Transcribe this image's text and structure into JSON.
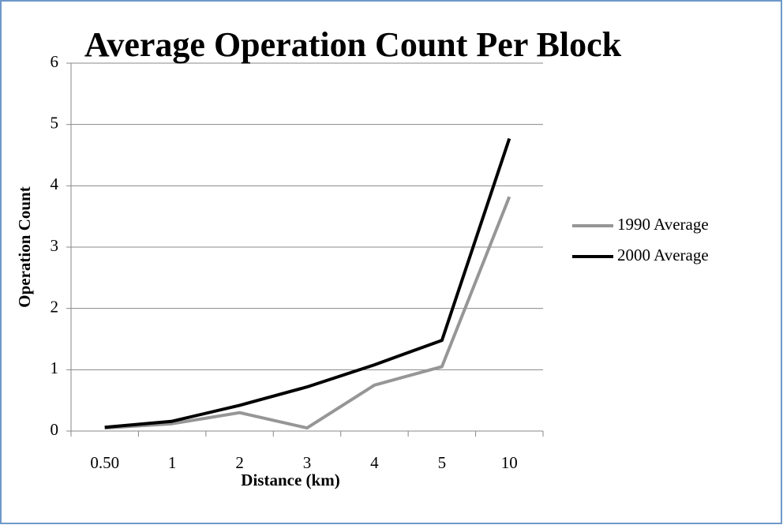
{
  "chart_data": {
    "type": "line",
    "title": "Average Operation Count Per Block",
    "xlabel": "Distance (km)",
    "ylabel": "Operation Count",
    "categories": [
      "0.50",
      "1",
      "2",
      "3",
      "4",
      "5",
      "10"
    ],
    "series": [
      {
        "name": "1990 Average",
        "color": "#969696",
        "values": [
          0.05,
          0.12,
          0.3,
          0.05,
          0.75,
          1.05,
          3.82
        ]
      },
      {
        "name": "2000 Average",
        "color": "#000000",
        "values": [
          0.06,
          0.16,
          0.42,
          0.72,
          1.08,
          1.48,
          4.77
        ]
      }
    ],
    "ylim": [
      0,
      6
    ],
    "yticks": [
      0,
      1,
      2,
      3,
      4,
      5,
      6
    ],
    "grid": true,
    "legend": "right"
  }
}
